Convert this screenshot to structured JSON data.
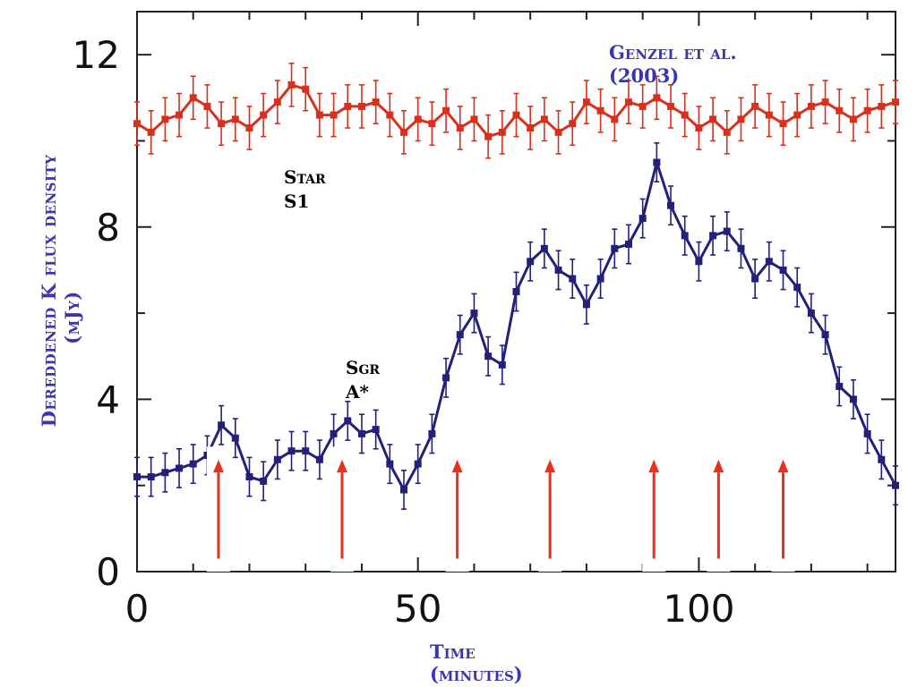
{
  "chart_data": {
    "type": "scatter",
    "xlabel_line1": "Time",
    "xlabel_line2": "(minutes)",
    "ylabel_line1": "Dereddened K flux density",
    "ylabel_line2": "(mJy)",
    "xlim": [
      0,
      135
    ],
    "ylim": [
      0,
      13
    ],
    "x_ticks": [
      0,
      50,
      100
    ],
    "y_ticks": [
      0,
      4,
      8,
      12
    ],
    "x_tick_labels": [
      "0",
      "50",
      "100"
    ],
    "y_tick_labels": [
      "0",
      "4",
      "8",
      "12"
    ],
    "annotations": {
      "genzel_line1": "Genzel et al.",
      "genzel_line2": "(2003)",
      "star_line1": "Star",
      "star_line2": "S1",
      "sgr_line1": "Sgr",
      "sgr_line2": "A*"
    },
    "arrow_times": [
      14.5,
      36.5,
      57,
      73.5,
      92,
      103.5,
      115
    ],
    "series": [
      {
        "color": "#d9301e",
        "x": [
          0,
          2.5,
          5,
          7.5,
          10,
          12.5,
          15,
          17.5,
          20,
          22.5,
          25,
          27.5,
          30,
          32.5,
          35,
          37.5,
          40,
          42.5,
          45,
          47.5,
          50,
          52.5,
          55,
          57.5,
          60,
          62.5,
          65,
          67.5,
          70,
          72.5,
          75,
          77.5,
          80,
          82.5,
          85,
          87.5,
          90,
          92.5,
          95,
          97.5,
          100,
          102.5,
          105,
          107.5,
          110,
          112.5,
          115,
          117.5,
          120,
          122.5,
          125,
          127.5,
          130,
          132.5,
          135
        ],
        "y": [
          10.4,
          10.2,
          10.5,
          10.6,
          11.0,
          10.8,
          10.4,
          10.5,
          10.3,
          10.6,
          10.9,
          11.3,
          11.2,
          10.6,
          10.6,
          10.8,
          10.8,
          10.9,
          10.6,
          10.2,
          10.5,
          10.4,
          10.7,
          10.3,
          10.5,
          10.1,
          10.2,
          10.6,
          10.3,
          10.5,
          10.2,
          10.4,
          10.9,
          10.7,
          10.5,
          10.9,
          10.8,
          11.0,
          10.8,
          10.6,
          10.3,
          10.5,
          10.2,
          10.5,
          10.8,
          10.6,
          10.4,
          10.6,
          10.8,
          10.9,
          10.7,
          10.5,
          10.7,
          10.8,
          10.9
        ],
        "err": 0.5
      },
      {
        "color": "#23207a",
        "x": [
          0,
          2.5,
          5,
          7.5,
          10,
          12.5,
          15,
          17.5,
          20,
          22.5,
          25,
          27.5,
          30,
          32.5,
          35,
          37.5,
          40,
          42.5,
          45,
          47.5,
          50,
          52.5,
          55,
          57.5,
          60,
          62.5,
          65,
          67.5,
          70,
          72.5,
          75,
          77.5,
          80,
          82.5,
          85,
          87.5,
          90,
          92.5,
          95,
          97.5,
          100,
          102.5,
          105,
          107.5,
          110,
          112.5,
          115,
          117.5,
          120,
          122.5,
          125,
          127.5,
          130,
          132.5,
          135
        ],
        "y": [
          2.2,
          2.2,
          2.3,
          2.4,
          2.5,
          2.7,
          3.4,
          3.1,
          2.2,
          2.1,
          2.6,
          2.8,
          2.8,
          2.6,
          3.2,
          3.5,
          3.2,
          3.3,
          2.5,
          1.9,
          2.5,
          3.2,
          4.5,
          5.5,
          6.0,
          5.0,
          4.8,
          6.5,
          7.2,
          7.5,
          7.0,
          6.8,
          6.2,
          6.8,
          7.5,
          7.6,
          8.2,
          9.5,
          8.5,
          7.8,
          7.2,
          7.8,
          7.9,
          7.5,
          6.8,
          7.2,
          7.0,
          6.6,
          6.0,
          5.5,
          4.3,
          4.0,
          3.2,
          2.6,
          2.0
        ],
        "err": 0.45
      }
    ]
  }
}
